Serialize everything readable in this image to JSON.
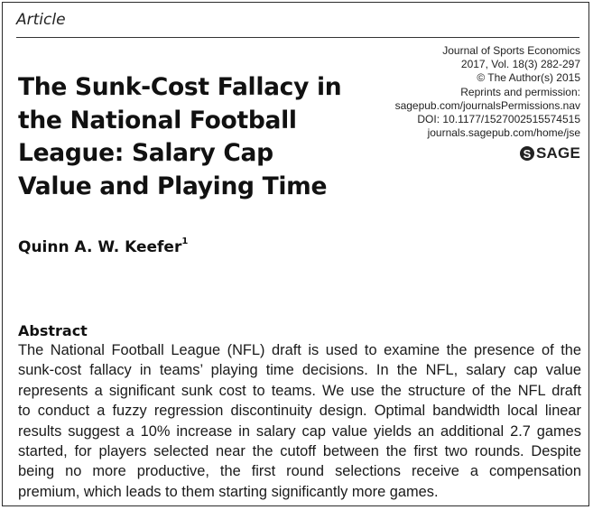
{
  "header": {
    "article_label": "Article"
  },
  "journal_info": {
    "lines": [
      "Journal of Sports Economics",
      "2017, Vol. 18(3) 282-297",
      "© The Author(s) 2015",
      "Reprints and permission:",
      "sagepub.com/journalsPermissions.nav",
      "DOI: 10.1177/1527002515574515",
      "journals.sagepub.com/home/jse"
    ]
  },
  "publisher": {
    "logo_mark": "S",
    "logo_text": "SAGE"
  },
  "title": {
    "lines": [
      "The Sunk-Cost Fallacy in",
      "the National Football",
      "League: Salary Cap",
      "Value and Playing Time"
    ]
  },
  "author": {
    "name": "Quinn A. W. Keefer",
    "affiliation_mark": "1"
  },
  "abstract": {
    "heading": "Abstract",
    "lines": [
      "The National Football League (NFL) draft is used to examine the presence of the",
      "sunk-cost fallacy in teams’ playing time decisions. In the NFL, salary cap value",
      "represents a significant sunk cost to teams. We use the structure of the NFL draft",
      "to conduct a fuzzy regression discontinuity design. Optimal bandwidth local linear",
      "results suggest a 10% increase in salary cap value yields an additional 2.7 games",
      "started, for players selected near the cutoff between the first two rounds. Despite",
      "being no more productive, the first round selections receive a compensation",
      "premium, which leads to them starting significantly more games."
    ]
  }
}
